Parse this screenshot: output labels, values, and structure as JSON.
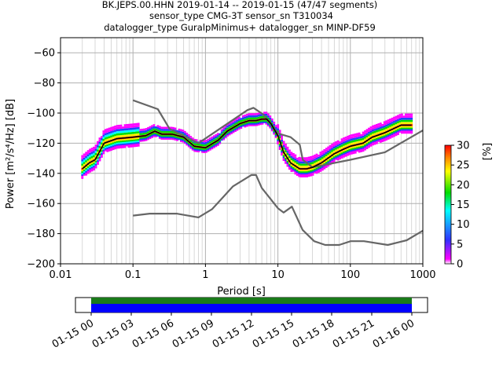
{
  "title_lines": [
    "BK.JEPS.00.HHN   2019-01-14 -- 2019-01-15  (47/47 segments)",
    "sensor_type CMG-3T sensor_sn T310034",
    "datalogger_type GuralpMinimus+ datalogger_sn MINP-DF59"
  ],
  "chart_data": [
    {
      "type": "line",
      "xlabel": "Period [s]",
      "ylabel": "Power [m²/s⁴/Hz] [dB]",
      "xscale": "log",
      "xlim": [
        0.01,
        1000
      ],
      "ylim": [
        -200,
        -50
      ],
      "xticks": [
        0.01,
        0.1,
        1,
        10,
        100,
        1000
      ],
      "xtick_labels": [
        "0.01",
        "0.1",
        "1",
        "10",
        "100",
        "1000"
      ],
      "yticks": [
        -200,
        -180,
        -160,
        -140,
        -120,
        -100,
        -80,
        -60
      ],
      "ytick_labels": [
        "−200",
        "−180",
        "−160",
        "−140",
        "−120",
        "−100",
        "−80",
        "−60"
      ],
      "grid": true,
      "series": [
        {
          "name": "",
          "role": "noise-model-high",
          "color": "#666666",
          "x": [
            0.1,
            0.22,
            0.32,
            0.8,
            3.8,
            4.6,
            6.3,
            10,
            15,
            20,
            22,
            30,
            100,
            300,
            1000
          ],
          "y": [
            -91.5,
            -97.4,
            -110.5,
            -120,
            -98,
            -96.5,
            -101,
            -113.5,
            -116,
            -121,
            -131,
            -136,
            -131,
            -126,
            -111.5
          ]
        },
        {
          "name": "",
          "role": "noise-model-low",
          "color": "#666666",
          "x": [
            0.1,
            0.17,
            0.4,
            0.8,
            1.24,
            2.4,
            4.3,
            5,
            6,
            10,
            12,
            15.6,
            21.9,
            31.6,
            45,
            70,
            101,
            154,
            328,
            600,
            1000
          ],
          "y": [
            -168,
            -166.7,
            -166.7,
            -169.2,
            -163.7,
            -148.6,
            -141.1,
            -141.1,
            -149.7,
            -163.1,
            -166,
            -162.1,
            -177.5,
            -185,
            -187.5,
            -187.5,
            -185,
            -185,
            -187.5,
            -184.4,
            -178
          ]
        },
        {
          "name": "",
          "role": "mode",
          "color": "#000000",
          "x": [
            0.02,
            0.025,
            0.03,
            0.04,
            0.06,
            0.1,
            0.15,
            0.2,
            0.25,
            0.35,
            0.5,
            0.7,
            1,
            1.5,
            2,
            3,
            4,
            5,
            6,
            7,
            8,
            10,
            12,
            15,
            20,
            25,
            30,
            40,
            60,
            80,
            100,
            150,
            200,
            300,
            500,
            700
          ],
          "y": [
            -137,
            -133,
            -131,
            -120,
            -117,
            -116,
            -115,
            -112,
            -114,
            -114,
            -116,
            -122,
            -123,
            -118,
            -112,
            -107,
            -105,
            -105,
            -104,
            -104,
            -107,
            -115,
            -126,
            -133,
            -137,
            -137,
            -136,
            -133,
            -127,
            -124,
            -122,
            -120,
            -116,
            -113,
            -108,
            -108
          ]
        }
      ],
      "density": {
        "colormap": "pqlx",
        "center_line": "mode"
      }
    },
    {
      "type": "bar",
      "role": "colorbar",
      "ylabel": "[%]",
      "ylim": [
        0,
        30
      ],
      "yticks": [
        0,
        5,
        10,
        15,
        20,
        25,
        30
      ],
      "ytick_labels": [
        "0",
        "5",
        "10",
        "15",
        "20",
        "25",
        "30"
      ]
    },
    {
      "type": "bar",
      "role": "data-coverage",
      "xlim": [
        "2019-01-14 23:00",
        "2019-01-16 01:00"
      ],
      "xtick_labels": [
        "01-15 00",
        "01-15 03",
        "01-15 06",
        "01-15 09",
        "01-15 12",
        "01-15 15",
        "01-15 18",
        "01-15 21",
        "01-16 00"
      ],
      "coverage_start": "2019-01-15 00:00",
      "coverage_end": "2019-01-16 00:00",
      "series": [
        {
          "name": "",
          "role": "processed-segments",
          "color": "#1a7a1a"
        },
        {
          "name": "",
          "role": "available-data",
          "color": "#0000ff"
        }
      ]
    }
  ]
}
